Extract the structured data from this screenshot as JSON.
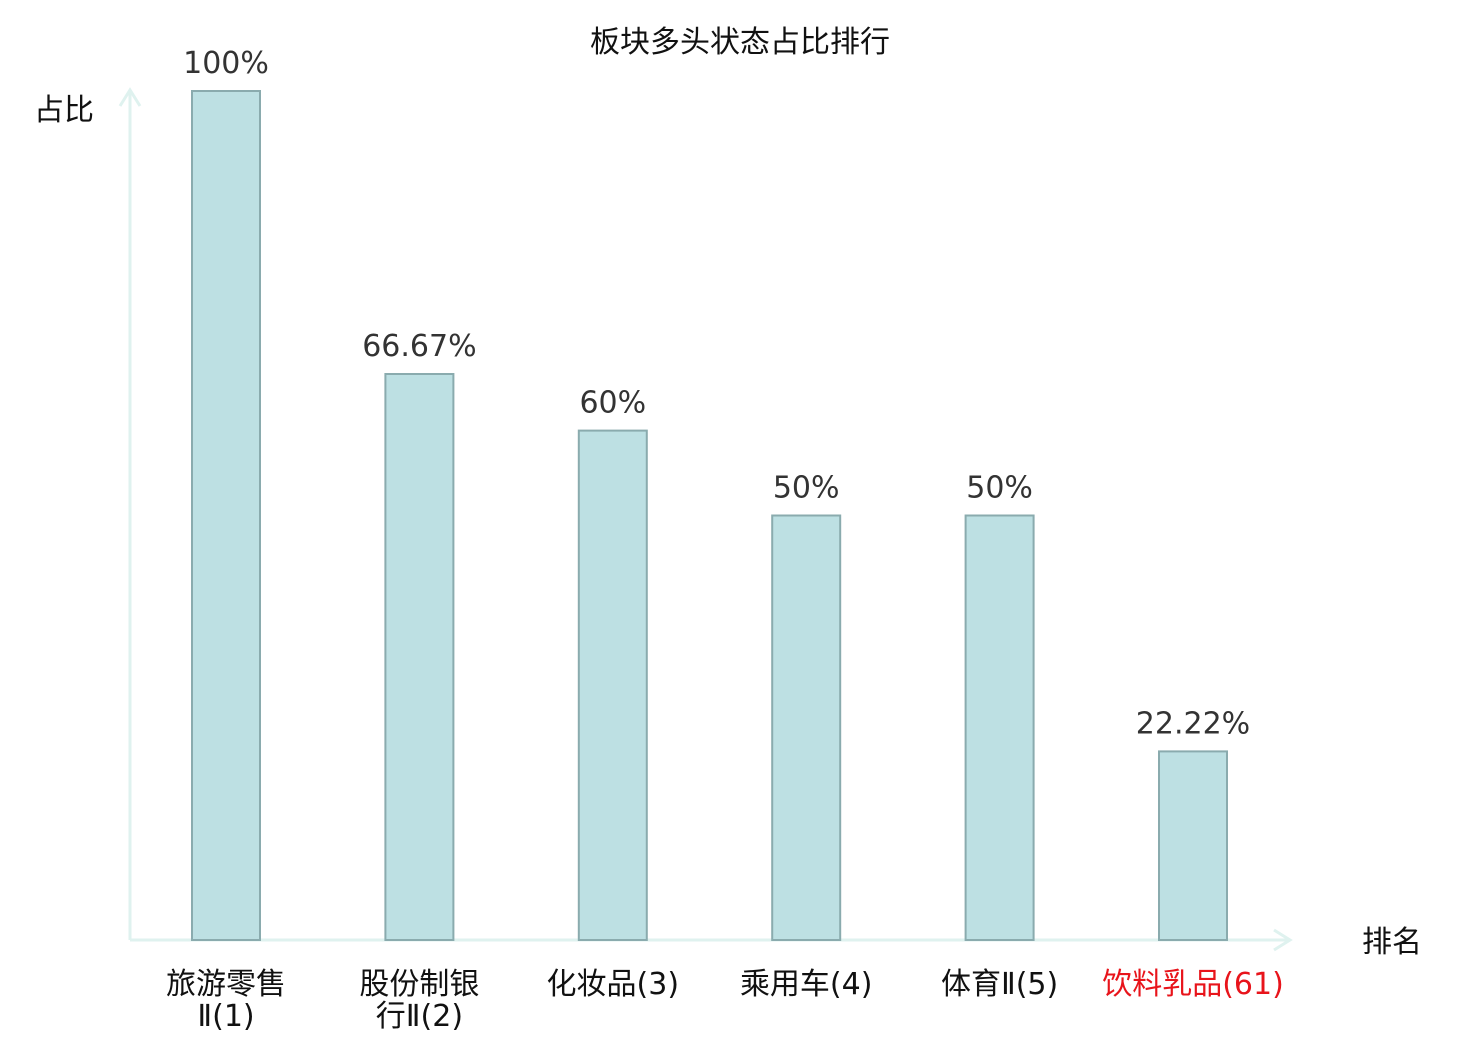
{
  "chart_data": {
    "type": "bar",
    "title": "板块多头状态占比排行",
    "ylabel": "占比",
    "xlabel": "排名",
    "ylim": [
      0,
      100
    ],
    "grid": false,
    "categories": [
      {
        "lines": [
          "旅游零售",
          "Ⅱ(1)"
        ],
        "highlight": false
      },
      {
        "lines": [
          "股份制银",
          "行Ⅱ(2)"
        ],
        "highlight": false
      },
      {
        "lines": [
          "化妆品(3)"
        ],
        "highlight": false
      },
      {
        "lines": [
          "乘用车(4)"
        ],
        "highlight": false
      },
      {
        "lines": [
          "体育Ⅱ(5)"
        ],
        "highlight": false
      },
      {
        "lines": [
          "饮料乳品(61)"
        ],
        "highlight": true
      }
    ],
    "values": [
      100,
      66.67,
      60,
      50,
      50,
      22.22
    ],
    "value_labels": [
      "100%",
      "66.67%",
      "60%",
      "50%",
      "50%",
      "22.22%"
    ]
  },
  "colors": {
    "bar_fill": "#bde0e3",
    "bar_stroke": "#8aabae",
    "axis": "#dff2ef",
    "text": "#333333",
    "highlight": "#e8141b"
  }
}
